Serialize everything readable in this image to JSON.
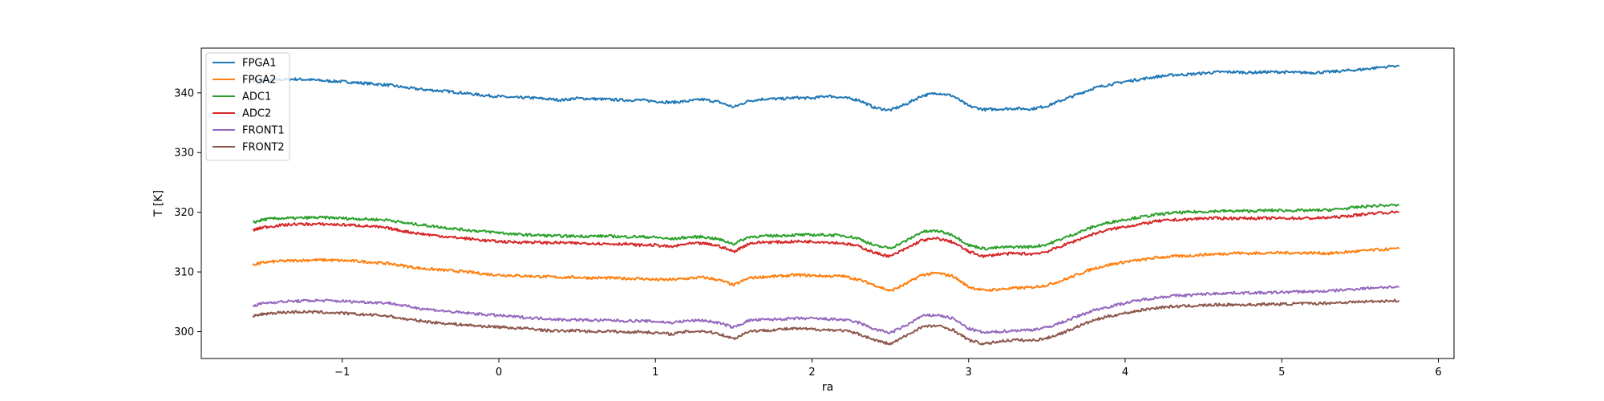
{
  "chart_data": {
    "type": "line",
    "title": "",
    "xlabel": "ra",
    "ylabel": "T [K]",
    "xlim": [
      -1.9,
      6.1
    ],
    "ylim": [
      295.5,
      347.5
    ],
    "xticks": [
      -1,
      0,
      1,
      2,
      3,
      4,
      5,
      6
    ],
    "yticks": [
      300,
      310,
      320,
      330,
      340
    ],
    "xtick_labels": [
      "−1",
      "0",
      "1",
      "2",
      "3",
      "4",
      "5",
      "6"
    ],
    "ytick_labels": [
      "300",
      "310",
      "320",
      "330",
      "340"
    ],
    "grid": false,
    "legend_position": "top-left",
    "x": [
      -1.57,
      -1.5,
      -1.4,
      -1.3,
      -1.2,
      -1.1,
      -1.0,
      -0.9,
      -0.8,
      -0.7,
      -0.6,
      -0.5,
      -0.4,
      -0.3,
      -0.2,
      -0.1,
      0.0,
      0.1,
      0.2,
      0.3,
      0.4,
      0.5,
      0.6,
      0.7,
      0.8,
      0.9,
      1.0,
      1.1,
      1.2,
      1.3,
      1.4,
      1.5,
      1.6,
      1.7,
      1.8,
      1.9,
      2.0,
      2.1,
      2.2,
      2.3,
      2.4,
      2.5,
      2.6,
      2.7,
      2.8,
      2.9,
      3.0,
      3.1,
      3.2,
      3.3,
      3.4,
      3.5,
      3.6,
      3.7,
      3.8,
      3.9,
      4.0,
      4.1,
      4.2,
      4.3,
      4.4,
      4.5,
      4.6,
      4.7,
      4.8,
      4.9,
      5.0,
      5.1,
      5.2,
      5.3,
      5.4,
      5.5,
      5.6,
      5.75
    ],
    "series": [
      {
        "name": "FPGA1",
        "color": "#1f77b4",
        "values": [
          342.0,
          342.1,
          342.2,
          342.3,
          342.2,
          342.0,
          341.9,
          341.7,
          341.5,
          341.3,
          340.9,
          340.6,
          340.4,
          340.2,
          339.9,
          339.6,
          339.4,
          339.2,
          339.2,
          339.0,
          338.8,
          339.1,
          339.0,
          338.9,
          338.8,
          338.8,
          338.6,
          338.4,
          338.6,
          338.9,
          338.5,
          337.6,
          338.7,
          339.0,
          339.0,
          339.2,
          339.1,
          339.5,
          339.2,
          338.8,
          337.5,
          337.1,
          338.1,
          339.5,
          340.0,
          339.5,
          337.8,
          337.2,
          337.3,
          337.4,
          337.3,
          337.8,
          338.8,
          339.8,
          340.8,
          341.4,
          341.9,
          342.3,
          342.7,
          343.0,
          343.1,
          343.3,
          343.5,
          343.5,
          343.4,
          343.5,
          343.5,
          343.4,
          343.4,
          343.5,
          343.7,
          343.9,
          344.2,
          344.6
        ]
      },
      {
        "name": "FPGA2",
        "color": "#ff7f0e",
        "values": [
          311.2,
          311.6,
          311.8,
          311.9,
          312.0,
          312.0,
          311.9,
          311.8,
          311.6,
          311.4,
          311.0,
          310.6,
          310.4,
          310.2,
          310.0,
          309.7,
          309.5,
          309.4,
          309.3,
          309.2,
          309.1,
          309.1,
          309.0,
          309.0,
          308.9,
          308.9,
          308.7,
          308.7,
          308.9,
          309.1,
          308.7,
          307.8,
          309.0,
          309.2,
          309.3,
          309.5,
          309.4,
          309.3,
          309.3,
          308.7,
          307.8,
          306.8,
          308.0,
          309.5,
          309.8,
          309.3,
          307.5,
          306.9,
          307.1,
          307.3,
          307.4,
          307.8,
          308.6,
          309.6,
          310.6,
          311.2,
          311.7,
          312.0,
          312.4,
          312.6,
          312.7,
          312.9,
          313.0,
          313.2,
          313.1,
          313.2,
          313.2,
          313.2,
          313.2,
          313.1,
          313.3,
          313.5,
          313.7,
          313.9
        ]
      },
      {
        "name": "ADC1",
        "color": "#2ca02c",
        "values": [
          318.3,
          318.8,
          319.0,
          319.0,
          319.1,
          319.1,
          319.0,
          318.9,
          318.8,
          318.7,
          318.2,
          317.9,
          317.6,
          317.3,
          317.0,
          316.8,
          316.6,
          316.3,
          316.2,
          316.1,
          316.0,
          316.0,
          316.0,
          316.0,
          315.9,
          315.9,
          315.8,
          315.5,
          315.8,
          315.9,
          315.5,
          314.7,
          315.9,
          316.0,
          316.1,
          316.2,
          316.2,
          316.2,
          316.1,
          315.6,
          314.4,
          314.0,
          315.2,
          316.7,
          316.9,
          316.2,
          314.5,
          313.9,
          314.1,
          314.2,
          314.2,
          314.6,
          315.6,
          316.6,
          317.6,
          318.3,
          318.8,
          319.2,
          319.6,
          319.9,
          320.0,
          320.1,
          320.2,
          320.2,
          320.2,
          320.3,
          320.3,
          320.3,
          320.3,
          320.4,
          320.6,
          320.9,
          321.1,
          321.2
        ]
      },
      {
        "name": "ADC2",
        "color": "#d62728",
        "values": [
          317.0,
          317.5,
          317.8,
          318.0,
          318.0,
          318.0,
          317.9,
          317.8,
          317.6,
          317.3,
          316.8,
          316.4,
          316.1,
          315.8,
          315.6,
          315.3,
          315.1,
          315.0,
          315.0,
          314.9,
          314.9,
          314.8,
          314.8,
          314.7,
          314.7,
          314.5,
          314.5,
          314.2,
          314.7,
          314.8,
          314.4,
          313.4,
          314.8,
          315.0,
          315.0,
          315.1,
          315.1,
          315.0,
          314.8,
          314.3,
          313.2,
          312.6,
          313.9,
          315.3,
          315.6,
          315.0,
          313.4,
          312.6,
          313.0,
          313.1,
          313.0,
          313.4,
          314.4,
          315.4,
          316.4,
          317.1,
          317.6,
          318.0,
          318.5,
          318.7,
          318.8,
          319.0,
          319.0,
          319.0,
          319.0,
          319.0,
          319.0,
          319.0,
          319.0,
          319.1,
          319.3,
          319.6,
          319.9,
          320.0
        ]
      },
      {
        "name": "FRONT1",
        "color": "#9467bd",
        "values": [
          304.3,
          304.8,
          305.0,
          305.1,
          305.2,
          305.2,
          305.1,
          305.0,
          304.9,
          304.8,
          304.3,
          303.9,
          303.6,
          303.3,
          303.1,
          302.9,
          302.7,
          302.5,
          302.3,
          302.2,
          302.0,
          302.0,
          301.9,
          301.9,
          301.8,
          301.8,
          301.7,
          301.5,
          301.8,
          301.9,
          301.5,
          300.7,
          301.9,
          302.0,
          302.1,
          302.2,
          302.2,
          302.1,
          302.0,
          301.5,
          300.4,
          299.8,
          301.0,
          302.6,
          302.8,
          302.2,
          300.5,
          299.8,
          300.0,
          300.2,
          300.3,
          300.7,
          301.6,
          302.6,
          303.6,
          304.2,
          304.8,
          305.3,
          305.7,
          306.0,
          306.1,
          306.3,
          306.4,
          306.5,
          306.5,
          306.5,
          306.6,
          306.7,
          306.7,
          306.8,
          307.0,
          307.2,
          307.4,
          307.5
        ]
      },
      {
        "name": "FRONT2",
        "color": "#8c564b",
        "values": [
          302.5,
          303.0,
          303.2,
          303.3,
          303.3,
          303.2,
          303.1,
          302.9,
          302.8,
          302.6,
          302.1,
          301.8,
          301.5,
          301.3,
          301.1,
          300.9,
          300.8,
          300.6,
          300.5,
          300.2,
          300.1,
          300.2,
          300.0,
          300.1,
          299.9,
          300.0,
          299.8,
          299.6,
          300.0,
          300.1,
          299.7,
          298.8,
          300.1,
          300.2,
          300.4,
          300.5,
          300.4,
          300.3,
          300.2,
          299.6,
          298.6,
          297.9,
          299.3,
          300.8,
          301.0,
          300.3,
          298.6,
          297.9,
          298.4,
          298.6,
          298.5,
          298.9,
          299.8,
          300.9,
          301.9,
          302.6,
          303.1,
          303.6,
          304.0,
          304.2,
          304.3,
          304.4,
          304.5,
          304.5,
          304.5,
          304.6,
          304.6,
          304.7,
          304.7,
          304.8,
          304.9,
          305.0,
          305.1,
          305.2
        ]
      }
    ]
  }
}
